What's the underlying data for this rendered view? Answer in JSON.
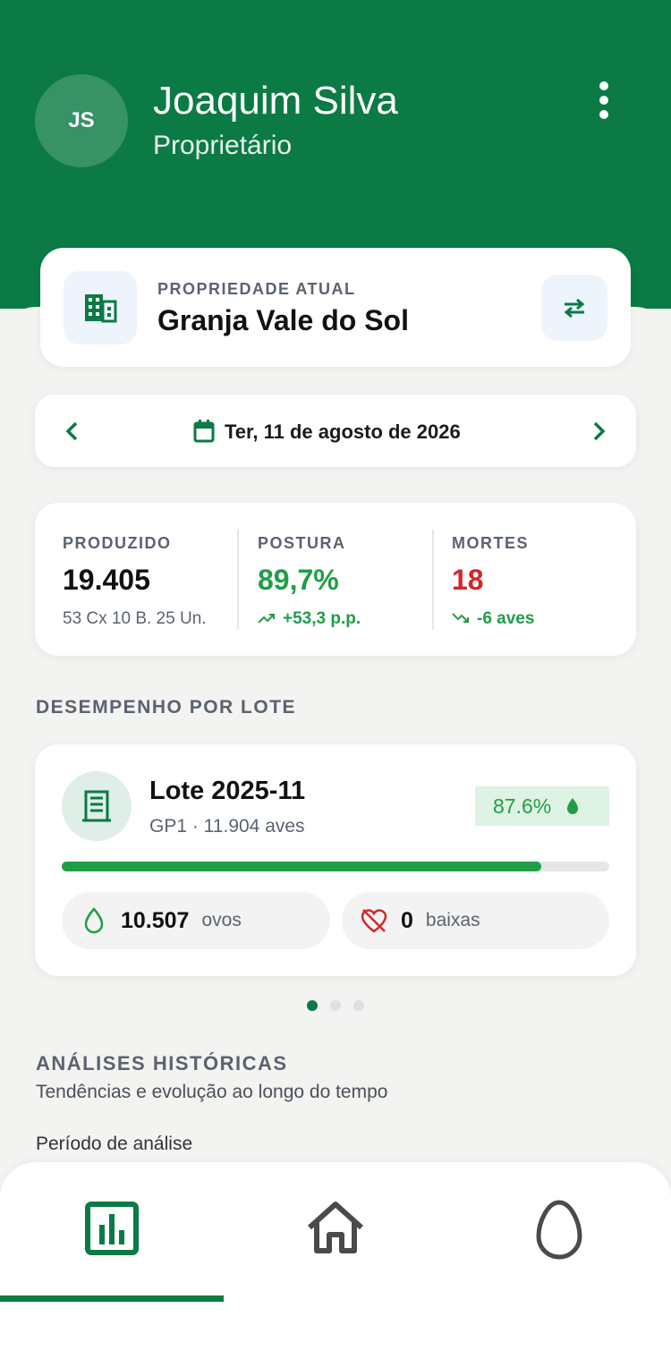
{
  "header": {
    "initials": "JS",
    "name": "Joaquim Silva",
    "role": "Proprietário"
  },
  "property": {
    "label": "PROPRIEDADE ATUAL",
    "name": "Granja Vale do Sol"
  },
  "date": "Ter, 11 de agosto de 2026",
  "stats": [
    {
      "label": "PRODUZIDO",
      "value": "19.405",
      "detail": "53 Cx 10 B. 25 Un."
    },
    {
      "label": "POSTURA",
      "value": "89,7%",
      "detail": "+53,3 p.p."
    },
    {
      "label": "MORTES",
      "value": "18",
      "detail": "-6 aves"
    }
  ],
  "lots_section": "DESEMPENHO POR LOTE",
  "lot": {
    "name": "Lote 2025-11",
    "subtitle": "GP1 · 11.904 aves",
    "rate": {
      "value": 87.6,
      "label": "87.6%"
    },
    "eggs": "10.507",
    "eggs_unit": "ovos",
    "losses": "0",
    "losses_unit": "baixas"
  },
  "history": {
    "title": "ANÁLISES HISTÓRICAS",
    "subtitle": "Tendências e evolução ao longo do tempo",
    "period_label": "Período de análise"
  }
}
